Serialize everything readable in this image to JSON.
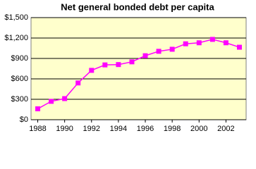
{
  "chart_data": {
    "type": "line",
    "title": "Net general bonded debt per capita",
    "x": [
      1988,
      1989,
      1990,
      1991,
      1992,
      1993,
      1994,
      1995,
      1996,
      1997,
      1998,
      1999,
      2000,
      2001,
      2002,
      2003
    ],
    "series": [
      {
        "color": "#ff00ff",
        "values": [
          160,
          270,
          310,
          540,
          725,
          805,
          810,
          850,
          940,
          1005,
          1035,
          1115,
          1130,
          1180,
          1130,
          1065
        ]
      }
    ],
    "xlim": [
      1987.5,
      2003.5
    ],
    "xticks": [
      1988,
      1990,
      1992,
      1994,
      1996,
      1998,
      2000,
      2002
    ],
    "ylim": [
      0,
      1500
    ],
    "yticks": [
      {
        "value": 0,
        "label": "$0"
      },
      {
        "value": 300,
        "label": "$300"
      },
      {
        "value": 600,
        "label": "$600"
      },
      {
        "value": 900,
        "label": "$900"
      },
      {
        "value": 1200,
        "label": "$1,200"
      },
      {
        "value": 1500,
        "label": "$1,500"
      }
    ],
    "grid": true,
    "plot_background": "#ffffcc"
  }
}
